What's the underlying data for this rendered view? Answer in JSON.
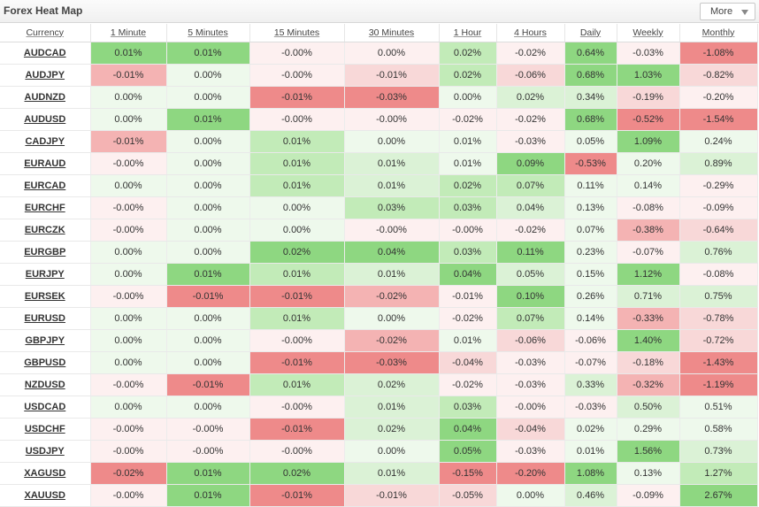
{
  "window": {
    "title": "Forex Heat Map",
    "more_label": "More"
  },
  "colors": {
    "neg_strong": "#ee8a8a",
    "neg_mid": "#f4b3b3",
    "neg_light": "#f8d8d8",
    "neg_faint": "#fdf0f0",
    "pos_faint": "#eef9ec",
    "pos_light": "#dbf2d6",
    "pos_mid": "#c2ebb8",
    "pos_strong": "#8ed781"
  },
  "table": {
    "headers": [
      "Currency",
      "1 Minute",
      "5 Minutes",
      "15 Minutes",
      "30 Minutes",
      "1 Hour",
      "4 Hours",
      "Daily",
      "Weekly",
      "Monthly"
    ],
    "rows": [
      {
        "symbol": "AUDCAD",
        "values": [
          "0.01%",
          "0.01%",
          "-0.00%",
          "0.00%",
          "0.02%",
          "-0.02%",
          "0.64%",
          "-0.03%",
          "-1.08%"
        ],
        "shades": [
          4,
          4,
          -1,
          -1,
          3,
          -1,
          4,
          -1,
          -4
        ]
      },
      {
        "symbol": "AUDJPY",
        "values": [
          "-0.01%",
          "0.00%",
          "-0.00%",
          "-0.01%",
          "0.02%",
          "-0.06%",
          "0.68%",
          "1.03%",
          "-0.82%"
        ],
        "shades": [
          -3,
          1,
          -1,
          -2,
          3,
          -2,
          4,
          4,
          -2
        ]
      },
      {
        "symbol": "AUDNZD",
        "values": [
          "0.00%",
          "0.00%",
          "-0.01%",
          "-0.03%",
          "0.00%",
          "0.02%",
          "0.34%",
          "-0.19%",
          "-0.20%"
        ],
        "shades": [
          1,
          1,
          -4,
          -4,
          1,
          2,
          2,
          -2,
          -1
        ]
      },
      {
        "symbol": "AUDUSD",
        "values": [
          "0.00%",
          "0.01%",
          "-0.00%",
          "-0.00%",
          "-0.02%",
          "-0.02%",
          "0.68%",
          "-0.52%",
          "-1.54%"
        ],
        "shades": [
          1,
          4,
          -1,
          -1,
          -1,
          -1,
          4,
          -4,
          -4
        ]
      },
      {
        "symbol": "CADJPY",
        "values": [
          "-0.01%",
          "0.00%",
          "0.01%",
          "0.00%",
          "0.01%",
          "-0.03%",
          "0.05%",
          "1.09%",
          "0.24%"
        ],
        "shades": [
          -3,
          1,
          3,
          1,
          1,
          -1,
          1,
          4,
          1
        ]
      },
      {
        "symbol": "EURAUD",
        "values": [
          "-0.00%",
          "0.00%",
          "0.01%",
          "0.01%",
          "0.01%",
          "0.09%",
          "-0.53%",
          "0.20%",
          "0.89%"
        ],
        "shades": [
          -1,
          1,
          3,
          2,
          1,
          4,
          -4,
          1,
          2
        ]
      },
      {
        "symbol": "EURCAD",
        "values": [
          "0.00%",
          "0.00%",
          "0.01%",
          "0.01%",
          "0.02%",
          "0.07%",
          "0.11%",
          "0.14%",
          "-0.29%"
        ],
        "shades": [
          1,
          1,
          3,
          2,
          3,
          3,
          1,
          1,
          -1
        ]
      },
      {
        "symbol": "EURCHF",
        "values": [
          "-0.00%",
          "0.00%",
          "0.00%",
          "0.03%",
          "0.03%",
          "0.04%",
          "0.13%",
          "-0.08%",
          "-0.09%"
        ],
        "shades": [
          -1,
          1,
          1,
          3,
          3,
          2,
          1,
          -1,
          -1
        ]
      },
      {
        "symbol": "EURCZK",
        "values": [
          "-0.00%",
          "0.00%",
          "0.00%",
          "-0.00%",
          "-0.00%",
          "-0.02%",
          "0.07%",
          "-0.38%",
          "-0.64%"
        ],
        "shades": [
          -1,
          1,
          1,
          -1,
          -1,
          -1,
          1,
          -3,
          -2
        ]
      },
      {
        "symbol": "EURGBP",
        "values": [
          "0.00%",
          "0.00%",
          "0.02%",
          "0.04%",
          "0.03%",
          "0.11%",
          "0.23%",
          "-0.07%",
          "0.76%"
        ],
        "shades": [
          1,
          1,
          4,
          4,
          3,
          4,
          1,
          -1,
          2
        ]
      },
      {
        "symbol": "EURJPY",
        "values": [
          "0.00%",
          "0.01%",
          "0.01%",
          "0.01%",
          "0.04%",
          "0.05%",
          "0.15%",
          "1.12%",
          "-0.08%"
        ],
        "shades": [
          1,
          4,
          3,
          2,
          4,
          2,
          1,
          4,
          -1
        ]
      },
      {
        "symbol": "EURSEK",
        "values": [
          "-0.00%",
          "-0.01%",
          "-0.01%",
          "-0.02%",
          "-0.01%",
          "0.10%",
          "0.26%",
          "0.71%",
          "0.75%"
        ],
        "shades": [
          -1,
          -4,
          -4,
          -3,
          -1,
          4,
          1,
          2,
          2
        ]
      },
      {
        "symbol": "EURUSD",
        "values": [
          "0.00%",
          "0.00%",
          "0.01%",
          "0.00%",
          "-0.02%",
          "0.07%",
          "0.14%",
          "-0.33%",
          "-0.78%"
        ],
        "shades": [
          1,
          1,
          3,
          1,
          -1,
          3,
          1,
          -3,
          -2
        ]
      },
      {
        "symbol": "GBPJPY",
        "values": [
          "0.00%",
          "0.00%",
          "-0.00%",
          "-0.02%",
          "0.01%",
          "-0.06%",
          "-0.06%",
          "1.40%",
          "-0.72%"
        ],
        "shades": [
          1,
          1,
          -1,
          -3,
          1,
          -2,
          -1,
          4,
          -2
        ]
      },
      {
        "symbol": "GBPUSD",
        "values": [
          "0.00%",
          "0.00%",
          "-0.01%",
          "-0.03%",
          "-0.04%",
          "-0.03%",
          "-0.07%",
          "-0.18%",
          "-1.43%"
        ],
        "shades": [
          1,
          1,
          -4,
          -4,
          -2,
          -1,
          -1,
          -2,
          -4
        ]
      },
      {
        "symbol": "NZDUSD",
        "values": [
          "-0.00%",
          "-0.01%",
          "0.01%",
          "0.02%",
          "-0.02%",
          "-0.03%",
          "0.33%",
          "-0.32%",
          "-1.19%"
        ],
        "shades": [
          -1,
          -4,
          3,
          2,
          -1,
          -1,
          2,
          -3,
          -4
        ]
      },
      {
        "symbol": "USDCAD",
        "values": [
          "0.00%",
          "0.00%",
          "-0.00%",
          "0.01%",
          "0.03%",
          "-0.00%",
          "-0.03%",
          "0.50%",
          "0.51%"
        ],
        "shades": [
          1,
          1,
          -1,
          2,
          3,
          -1,
          -1,
          2,
          1
        ]
      },
      {
        "symbol": "USDCHF",
        "values": [
          "-0.00%",
          "-0.00%",
          "-0.01%",
          "0.02%",
          "0.04%",
          "-0.04%",
          "0.02%",
          "0.29%",
          "0.58%"
        ],
        "shades": [
          -1,
          -1,
          -4,
          2,
          4,
          -2,
          1,
          1,
          1
        ]
      },
      {
        "symbol": "USDJPY",
        "values": [
          "-0.00%",
          "-0.00%",
          "-0.00%",
          "0.00%",
          "0.05%",
          "-0.03%",
          "0.01%",
          "1.56%",
          "0.73%"
        ],
        "shades": [
          -1,
          -1,
          -1,
          1,
          4,
          -1,
          1,
          4,
          2
        ]
      },
      {
        "symbol": "XAGUSD",
        "values": [
          "-0.02%",
          "0.01%",
          "0.02%",
          "0.01%",
          "-0.15%",
          "-0.20%",
          "1.08%",
          "0.13%",
          "1.27%"
        ],
        "shades": [
          -4,
          4,
          4,
          2,
          -4,
          -4,
          4,
          1,
          3
        ]
      },
      {
        "symbol": "XAUUSD",
        "values": [
          "-0.00%",
          "0.01%",
          "-0.01%",
          "-0.01%",
          "-0.05%",
          "0.00%",
          "0.46%",
          "-0.09%",
          "2.67%"
        ],
        "shades": [
          -1,
          4,
          -4,
          -2,
          -2,
          1,
          2,
          -1,
          4
        ]
      }
    ]
  }
}
